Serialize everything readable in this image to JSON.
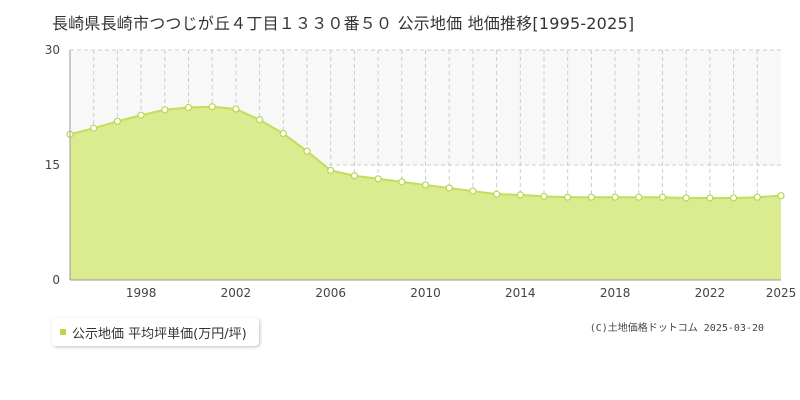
{
  "title": "長崎県長崎市つつじが丘４丁目１３３０番５０ 公示地価 地価推移[1995-2025]",
  "legend": {
    "label": "公示地価 平均坪単価(万円/坪)"
  },
  "copyright": "(C)土地価格ドットコム 2025-03-20",
  "colors": {
    "area_fill": "#dbeb8f",
    "line": "#c3dd5c",
    "marker_fill": "#ffffff",
    "marker_stroke": "#b6d94a",
    "grid": "#cccccc",
    "axis": "#999999",
    "legend_marker": "#b6d94a"
  },
  "chart_data": {
    "type": "area",
    "xlim": [
      1995,
      2025
    ],
    "ylim": [
      0,
      30
    ],
    "y_ticks": [
      0,
      15,
      30
    ],
    "x_ticks": [
      1998,
      2002,
      2006,
      2010,
      2014,
      2018,
      2022,
      2025
    ],
    "grid": true,
    "legend_position": "bottom-left",
    "series": [
      {
        "name": "公示地価 平均坪単価(万円/坪)",
        "x": [
          1995,
          1996,
          1997,
          1998,
          1999,
          2000,
          2001,
          2002,
          2003,
          2004,
          2005,
          2006,
          2007,
          2008,
          2009,
          2010,
          2011,
          2012,
          2013,
          2014,
          2015,
          2016,
          2017,
          2018,
          2019,
          2020,
          2021,
          2022,
          2023,
          2024,
          2025
        ],
        "y": [
          19.0,
          19.8,
          20.7,
          21.5,
          22.2,
          22.5,
          22.6,
          22.3,
          20.9,
          19.1,
          16.8,
          14.3,
          13.6,
          13.2,
          12.8,
          12.4,
          12.0,
          11.6,
          11.2,
          11.1,
          10.9,
          10.8,
          10.8,
          10.8,
          10.8,
          10.8,
          10.7,
          10.7,
          10.7,
          10.8,
          11.0
        ]
      }
    ]
  }
}
